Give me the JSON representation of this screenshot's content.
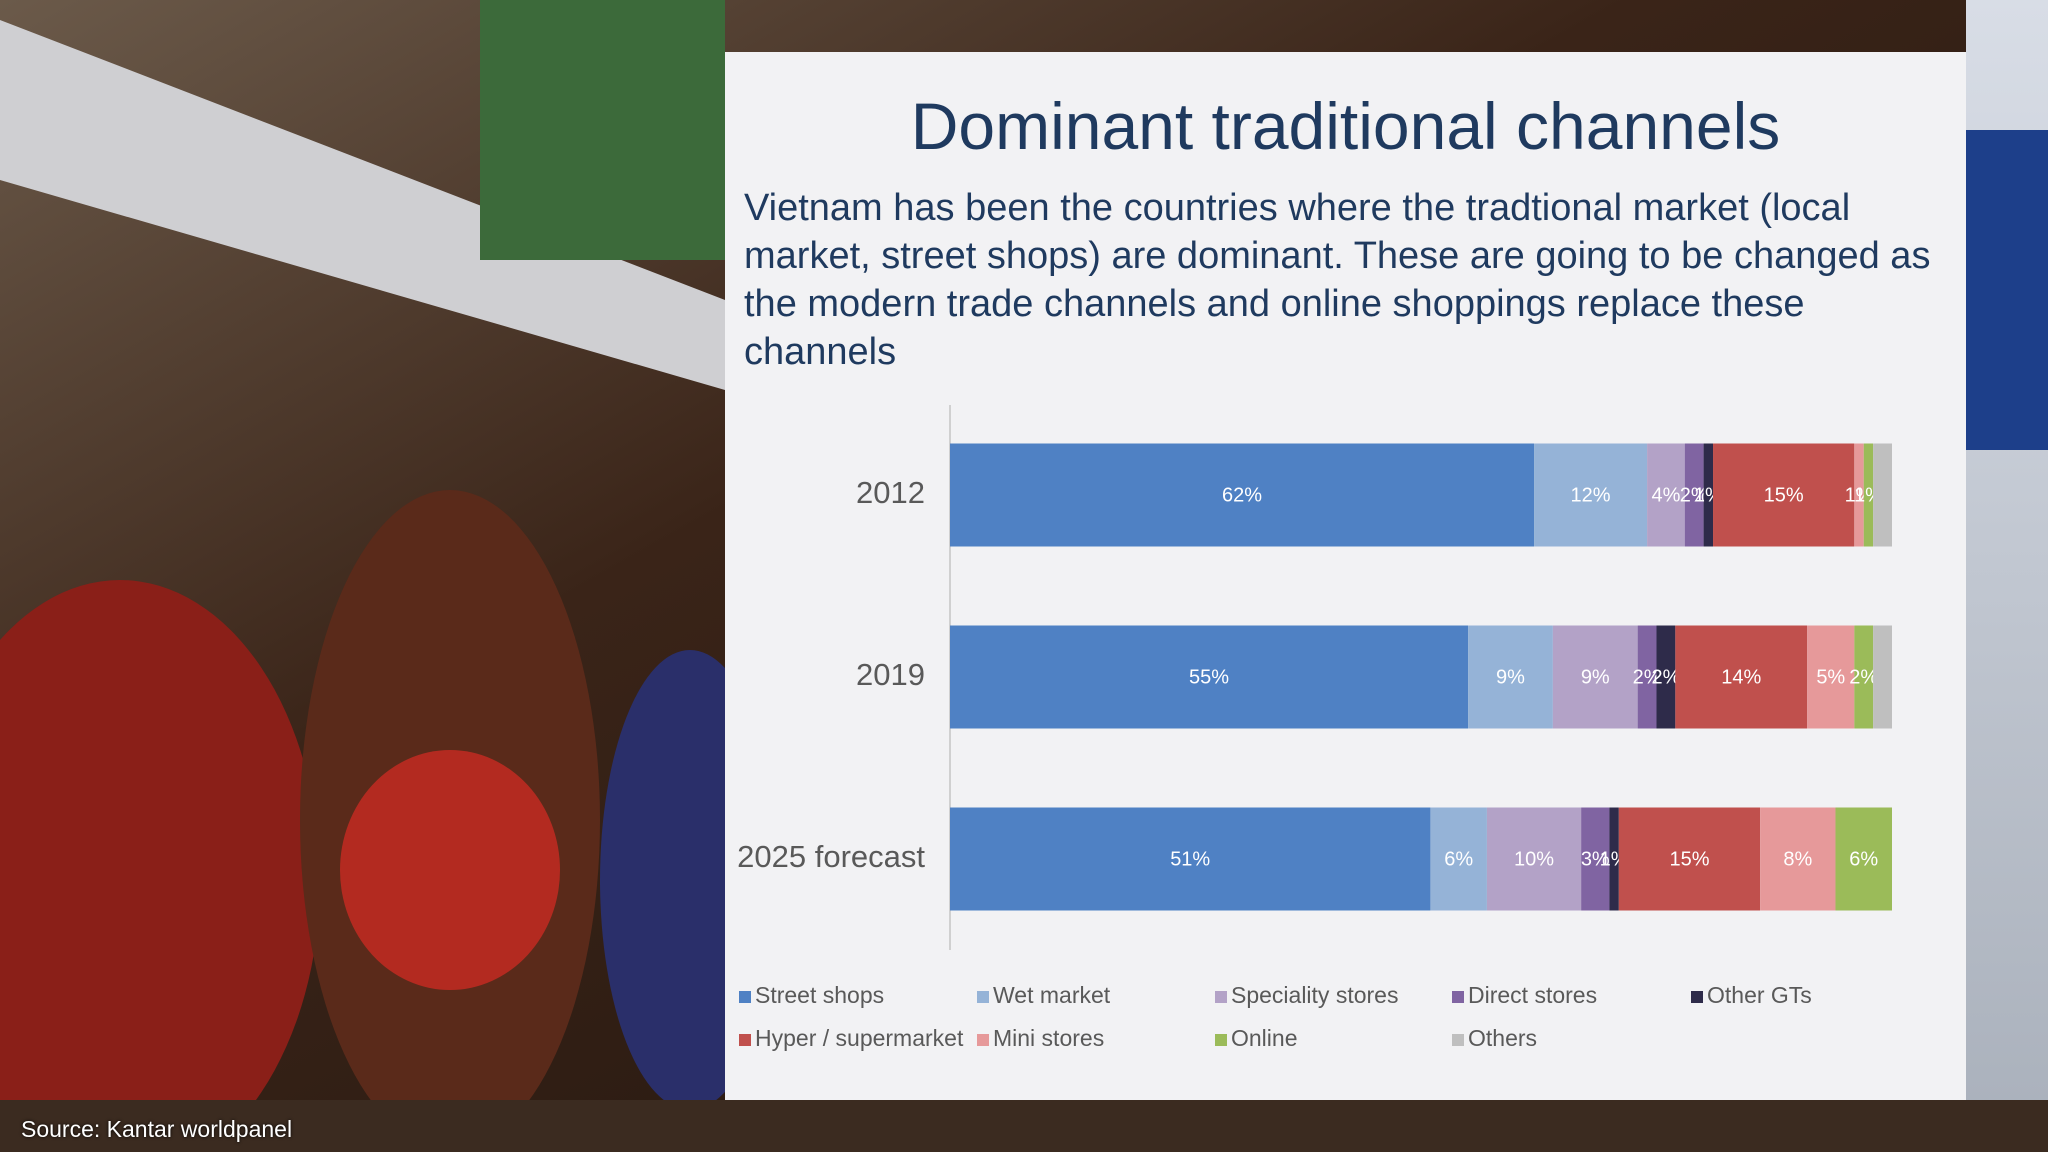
{
  "chart_data": {
    "type": "bar",
    "orientation": "horizontal",
    "stacked": true,
    "title": "Dominant traditional channels",
    "subtitle": "Vietnam has been the countries where the tradtional market (local market, street shops) are dominant. These are going to be changed as the modern trade channels and online shoppings replace these channels",
    "source": "Source: Kantar worldpanel",
    "categories": [
      "2012",
      "2019",
      "2025 forecast"
    ],
    "xlim": [
      0,
      100
    ],
    "series": [
      {
        "name": "Street shops",
        "color": "#4f81c4",
        "values": [
          62,
          55,
          51
        ],
        "value_labels": [
          "62%",
          "55%",
          "51%"
        ]
      },
      {
        "name": "Wet market",
        "color": "#95b3d7",
        "values": [
          12,
          9,
          6
        ],
        "value_labels": [
          "12%",
          "9%",
          "6%"
        ]
      },
      {
        "name": "Speciality stores",
        "color": "#b3a2c7",
        "values": [
          4,
          9,
          10
        ],
        "value_labels": [
          "4%",
          "9%",
          "10%"
        ]
      },
      {
        "name": "Direct stores",
        "color": "#8064a2",
        "values": [
          2,
          2,
          3
        ],
        "value_labels": [
          "2%",
          "2%",
          "3%"
        ]
      },
      {
        "name": "Other GTs",
        "color": "#2e2b4a",
        "values": [
          1,
          2,
          1
        ],
        "value_labels": [
          "1%",
          "2%",
          "1%"
        ]
      },
      {
        "name": "Hyper / supermarket",
        "color": "#c0504d",
        "values": [
          15,
          14,
          15
        ],
        "value_labels": [
          "15%",
          "14%",
          "15%"
        ]
      },
      {
        "name": "Mini stores",
        "color": "#e6999a",
        "values": [
          1,
          5,
          8
        ],
        "value_labels": [
          "1%",
          "5%",
          "8%"
        ]
      },
      {
        "name": "Online",
        "color": "#9bbb59",
        "values": [
          1,
          2,
          6
        ],
        "value_labels": [
          "1%",
          "2%",
          "6%"
        ]
      },
      {
        "name": "Others",
        "color": "#bfbfbf",
        "values": [
          2,
          2,
          0
        ],
        "value_labels": [
          null,
          null,
          null
        ]
      }
    ]
  }
}
